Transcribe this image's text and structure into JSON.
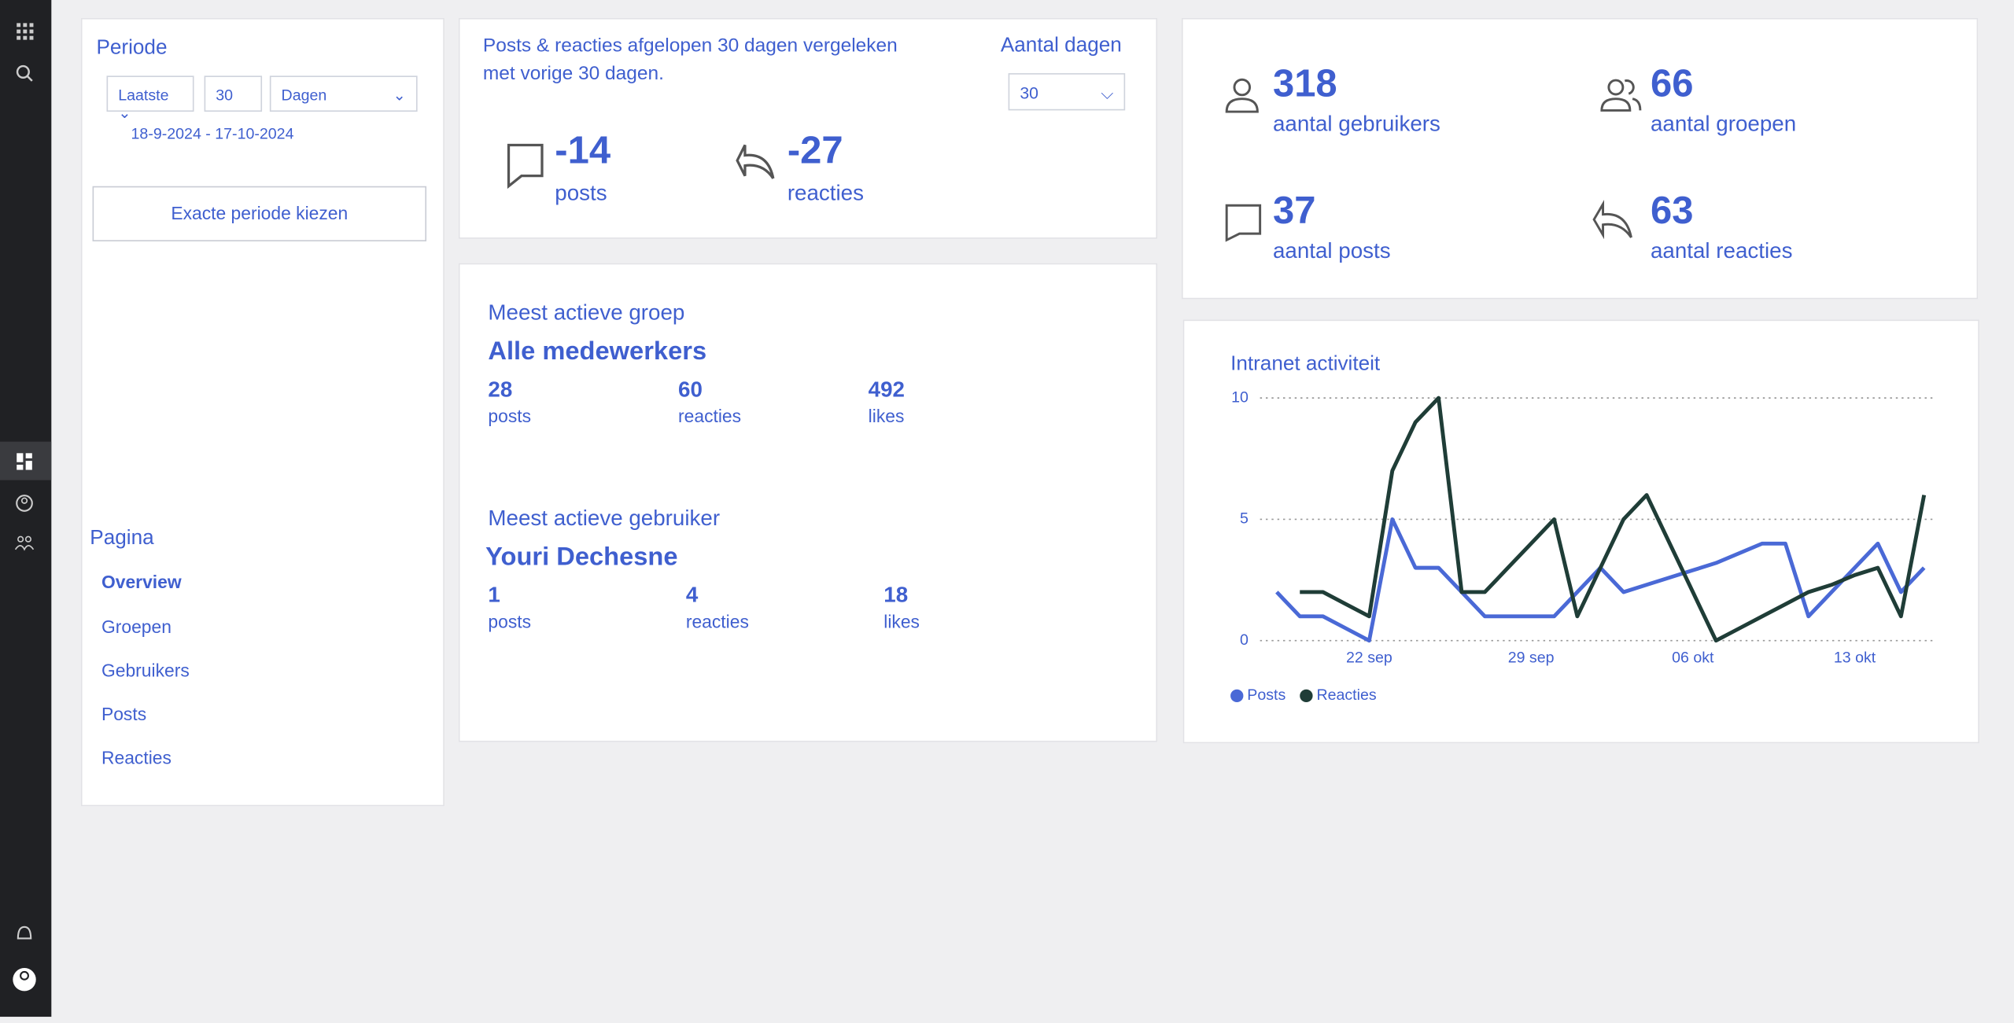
{
  "period": {
    "title": "Periode",
    "mode": "Laatste",
    "amount": "30",
    "unit": "Dagen",
    "range": "18-9-2024 - 17-10-2024",
    "button": "Exacte periode kiezen"
  },
  "navigation": {
    "title": "Pagina",
    "items": [
      "Overview",
      "Groepen",
      "Gebruikers",
      "Posts",
      "Reacties"
    ]
  },
  "comparison": {
    "text": "Posts & reacties afgelopen 30 dagen vergeleken met vorige 30 dagen.",
    "days_label": "Aantal dagen",
    "days_value": "30",
    "stats": [
      {
        "value": -14,
        "label": "posts"
      },
      {
        "value": -27,
        "label": "reacties"
      }
    ]
  },
  "most_active_group": {
    "title": "Meest actieve groep",
    "name": "Alle medewerkers",
    "stats": [
      {
        "value": 28,
        "label": "posts"
      },
      {
        "value": 60,
        "label": "reacties"
      },
      {
        "value": 492,
        "label": "likes"
      }
    ]
  },
  "most_active_user": {
    "title": "Meest actieve gebruiker",
    "name": "Youri Dechesne",
    "stats": [
      {
        "value": 1,
        "label": "posts"
      },
      {
        "value": 4,
        "label": "reacties"
      },
      {
        "value": 18,
        "label": "likes"
      }
    ]
  },
  "totals": [
    {
      "value": 318,
      "label": "aantal gebruikers"
    },
    {
      "value": 66,
      "label": "aantal groepen"
    },
    {
      "value": 37,
      "label": "aantal posts"
    },
    {
      "value": 63,
      "label": "aantal reacties"
    }
  ],
  "chart_data": {
    "type": "line",
    "title": "Intranet activiteit",
    "categories": [
      null,
      null,
      null,
      null,
      "22 sep",
      null,
      null,
      null,
      null,
      null,
      null,
      "29 sep",
      null,
      null,
      null,
      null,
      null,
      null,
      "06 okt",
      null,
      null,
      null,
      null,
      null,
      null,
      "13 okt",
      null,
      null,
      null
    ],
    "series": [
      {
        "name": "Posts",
        "color": "#4a69d6",
        "values": [
          2,
          1,
          1,
          0.5,
          0,
          5,
          3,
          3,
          2,
          1,
          1,
          1,
          1,
          2,
          3,
          2,
          2.3,
          2.6,
          2.9,
          3.2,
          3.6,
          4,
          4,
          1,
          2,
          3,
          4,
          2,
          3
        ]
      },
      {
        "name": "Reacties",
        "color": "#1f3d37",
        "values": [
          null,
          2,
          2,
          1.5,
          1,
          7,
          9,
          10,
          2,
          2,
          3,
          4,
          5,
          1,
          3,
          5,
          6,
          4,
          2,
          0,
          0.5,
          1,
          1.5,
          2,
          2.3,
          2.7,
          3,
          1,
          6
        ]
      }
    ],
    "ylim": [
      0,
      10
    ],
    "yticks": [
      0,
      5,
      10
    ],
    "grid": true,
    "legend": "bottom-left"
  }
}
